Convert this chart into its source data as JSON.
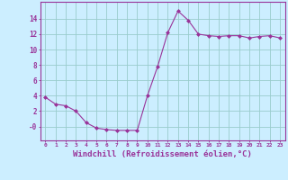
{
  "x": [
    0,
    1,
    2,
    3,
    4,
    5,
    6,
    7,
    8,
    9,
    10,
    11,
    12,
    13,
    14,
    15,
    16,
    17,
    18,
    19,
    20,
    21,
    22,
    23
  ],
  "y": [
    3.8,
    2.9,
    2.7,
    2.0,
    0.5,
    -0.2,
    -0.4,
    -0.5,
    -0.5,
    -0.5,
    4.0,
    7.8,
    12.2,
    15.0,
    13.8,
    12.0,
    11.8,
    11.7,
    11.8,
    11.8,
    11.5,
    11.7,
    11.8,
    11.5
  ],
  "line_color": "#993399",
  "marker": "D",
  "marker_size": 2,
  "bg_color": "#cceeff",
  "grid_color": "#99cccc",
  "xlabel": "Windchill (Refroidissement éolien,°C)",
  "xlabel_fontsize": 6.5,
  "yticks": [
    0,
    2,
    4,
    6,
    8,
    10,
    12,
    14
  ],
  "ytick_labels": [
    "-0",
    "2",
    "4",
    "6",
    "8",
    "10",
    "12",
    "14"
  ],
  "ylim": [
    -1.8,
    16.2
  ],
  "xlim": [
    -0.5,
    23.5
  ],
  "font_color": "#993399"
}
